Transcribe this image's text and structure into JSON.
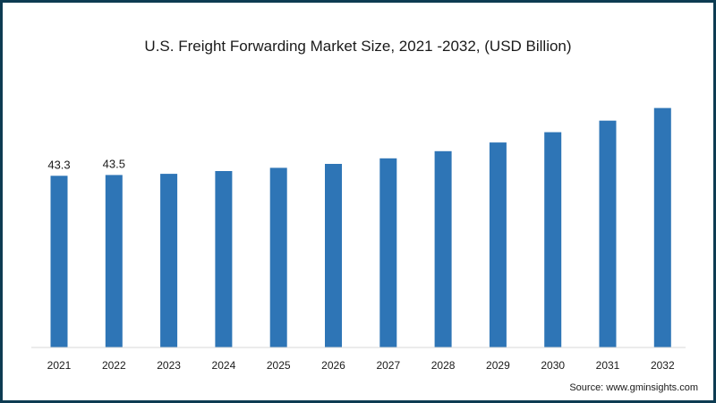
{
  "chart_data": {
    "type": "bar",
    "title": "U.S. Freight Forwarding Market Size, 2021 -2032, (USD Billion)",
    "categories": [
      "2021",
      "2022",
      "2023",
      "2024",
      "2025",
      "2026",
      "2027",
      "2028",
      "2029",
      "2030",
      "2031",
      "2032"
    ],
    "series": [
      {
        "values": [
          43.3,
          43.5,
          43.8,
          44.5,
          45.3,
          46.3,
          47.7,
          49.5,
          51.7,
          54.3,
          57.2,
          60.4
        ]
      }
    ],
    "data_labels": [
      "43.3",
      "43.5",
      "",
      "",
      "",
      "",
      "",
      "",
      "",
      "",
      "",
      ""
    ],
    "ylim": [
      0,
      72.5
    ],
    "bar_color": "#2e75b6",
    "grid": false,
    "legend": "none"
  },
  "source": "Source: www.gminsights.com",
  "colors": {
    "frame": "#0d3b52",
    "axis": "#d9d9d9"
  }
}
